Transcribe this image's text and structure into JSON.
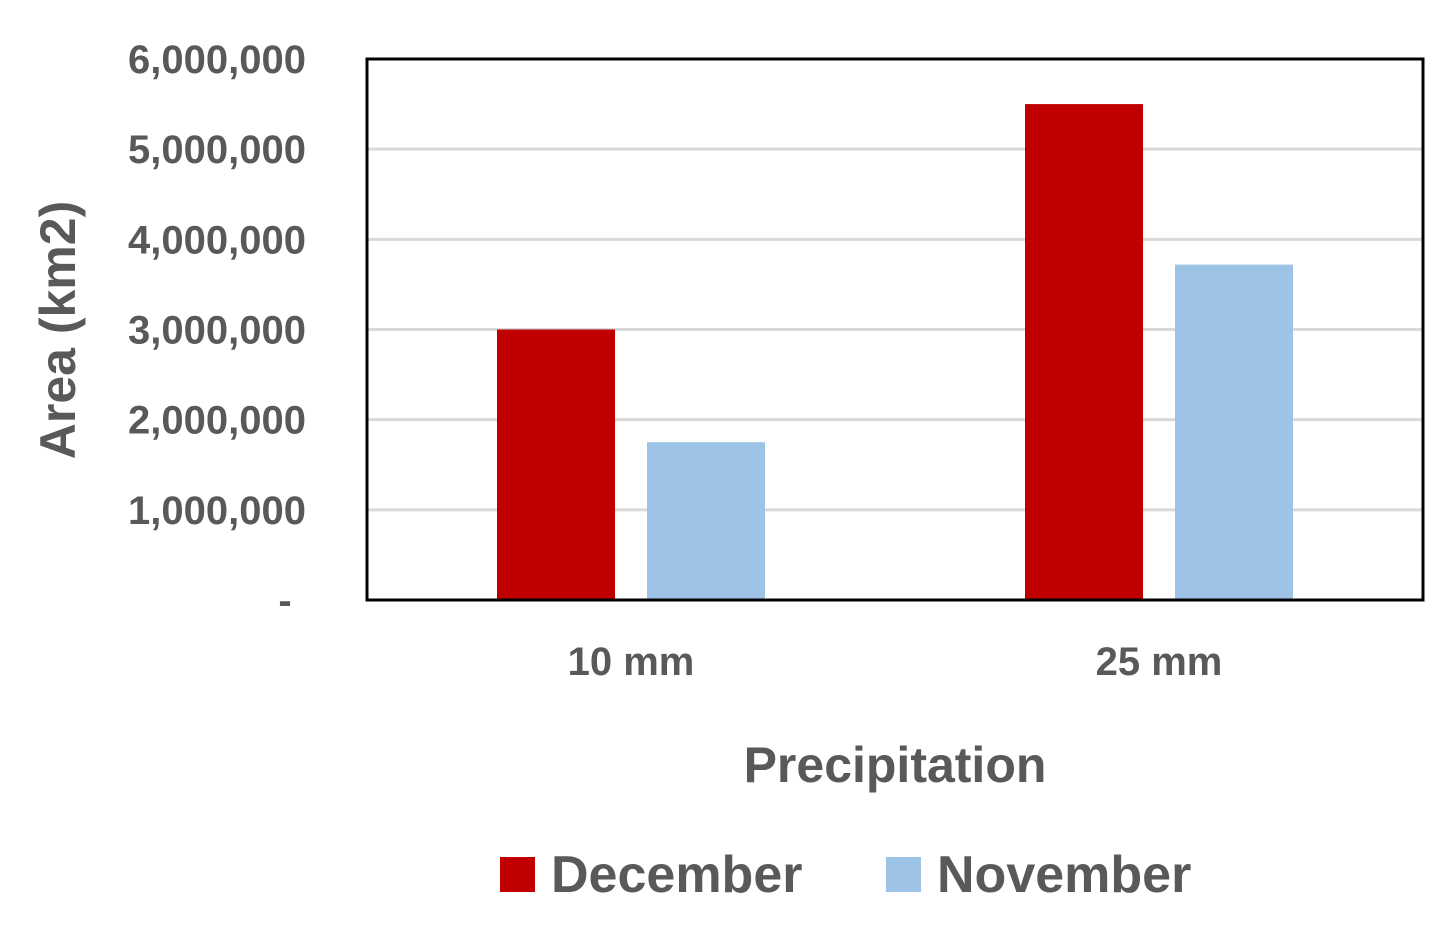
{
  "chart_data": {
    "type": "bar",
    "categories": [
      "10 mm",
      "25 mm"
    ],
    "series": [
      {
        "name": "December",
        "values": [
          3000000,
          5500000
        ],
        "color": "#C00000"
      },
      {
        "name": "November",
        "values": [
          1750000,
          3720000
        ],
        "color": "#9DC3E6"
      }
    ],
    "xlabel": "Precipitation",
    "ylabel": "Area (km2)",
    "ylim": [
      0,
      6000000
    ],
    "yticks": [
      0,
      1000000,
      2000000,
      3000000,
      4000000,
      5000000,
      6000000
    ],
    "ytick_labels": [
      "-",
      "1,000,000",
      "2,000,000",
      "3,000,000",
      "4,000,000",
      "5,000,000",
      "6,000,000"
    ],
    "grid": true,
    "legend_position": "bottom",
    "colors": {
      "text": "#595959",
      "grid": "#D9D9D9",
      "frame": "#000000",
      "baseline": "#BFBFBF"
    }
  }
}
